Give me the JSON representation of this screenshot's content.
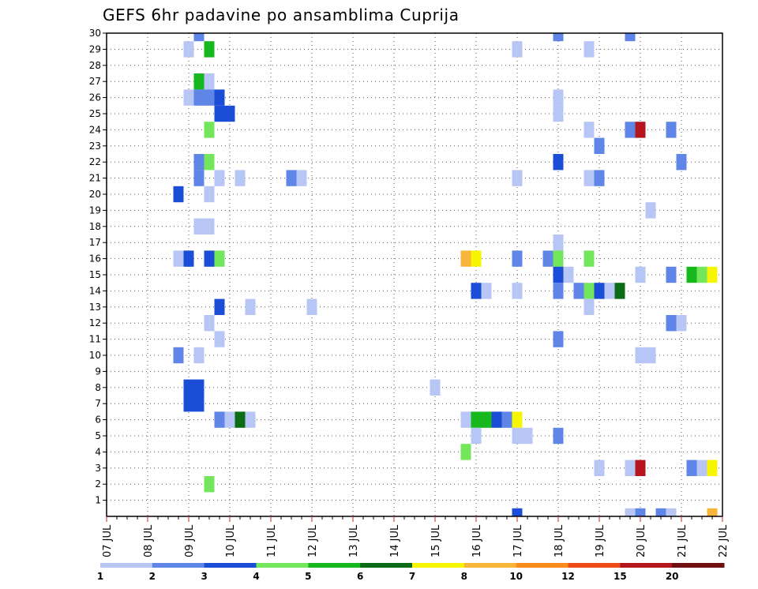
{
  "chart_data": {
    "type": "heatmap",
    "title": "GEFS 6hr padavine po ansamblima Cuprija",
    "x_tick_labels": [
      "07 JUL",
      "08 JUL",
      "09 JUL",
      "10 JUL",
      "11 JUL",
      "12 JUL",
      "13 JUL",
      "14 JUL",
      "15 JUL",
      "16 JUL",
      "17 JUL",
      "18 JUL",
      "19 JUL",
      "20 JUL",
      "21 JUL",
      "22 JUL"
    ],
    "y_tick_labels": [
      "1",
      "2",
      "3",
      "4",
      "5",
      "6",
      "7",
      "8",
      "9",
      "10",
      "11",
      "12",
      "13",
      "14",
      "15",
      "16",
      "17",
      "18",
      "19",
      "20",
      "21",
      "22",
      "23",
      "24",
      "25",
      "26",
      "27",
      "28",
      "29",
      "30"
    ],
    "y_range": [
      0,
      30
    ],
    "x_time_step_hours": 6,
    "grid": "dotted",
    "legend": {
      "position": "bottom",
      "labels": [
        "1",
        "2",
        "3",
        "4",
        "5",
        "6",
        "7",
        "8",
        "10",
        "12",
        "15",
        "20"
      ],
      "colors": [
        "#b7c6f4",
        "#5f86e6",
        "#1c4dd6",
        "#74e65c",
        "#16b81e",
        "#0b6b16",
        "#f8f500",
        "#f7b53a",
        "#f98c1c",
        "#f04a16",
        "#b5161e",
        "#6f0f10"
      ]
    },
    "colors": {
      "c1": "#b7c6f4",
      "c2": "#5f86e6",
      "c3": "#1c4dd6",
      "c4": "#74e65c",
      "c5": "#16b81e",
      "c6": "#0b6b16",
      "c7": "#f8f500",
      "c8": "#f7b53a",
      "c20": "#b5161e"
    },
    "cells": [
      [
        "09 JUL 06Z",
        30,
        2
      ],
      [
        "18 JUL 00Z",
        30,
        2
      ],
      [
        "19 JUL 18Z",
        30,
        2
      ],
      [
        "09 JUL 00Z",
        29,
        1
      ],
      [
        "09 JUL 12Z",
        29,
        5
      ],
      [
        "17 JUL 00Z",
        29,
        1
      ],
      [
        "18 JUL 18Z",
        29,
        1
      ],
      [
        "09 JUL 06Z",
        27,
        5
      ],
      [
        "09 JUL 12Z",
        27,
        1
      ],
      [
        "09 JUL 00Z",
        26,
        1
      ],
      [
        "09 JUL 06Z",
        26,
        2
      ],
      [
        "09 JUL 12Z",
        26,
        2
      ],
      [
        "09 JUL 18Z",
        26,
        3
      ],
      [
        "18 JUL 00Z",
        26,
        1
      ],
      [
        "09 JUL 18Z",
        25,
        3
      ],
      [
        "10 JUL 00Z",
        25,
        3
      ],
      [
        "18 JUL 00Z",
        25,
        1
      ],
      [
        "09 JUL 12Z",
        24,
        4
      ],
      [
        "18 JUL 18Z",
        24,
        1
      ],
      [
        "19 JUL 18Z",
        24,
        2
      ],
      [
        "20 JUL 00Z",
        24,
        20
      ],
      [
        "20 JUL 18Z",
        24,
        2
      ],
      [
        "19 JUL 00Z",
        23,
        2
      ],
      [
        "09 JUL 06Z",
        22,
        2
      ],
      [
        "09 JUL 12Z",
        22,
        4
      ],
      [
        "18 JUL 00Z",
        22,
        3
      ],
      [
        "21 JUL 00Z",
        22,
        2
      ],
      [
        "09 JUL 06Z",
        21,
        2
      ],
      [
        "09 JUL 18Z",
        21,
        1
      ],
      [
        "10 JUL 06Z",
        21,
        1
      ],
      [
        "11 JUL 12Z",
        21,
        2
      ],
      [
        "11 JUL 18Z",
        21,
        1
      ],
      [
        "17 JUL 00Z",
        21,
        1
      ],
      [
        "18 JUL 18Z",
        21,
        1
      ],
      [
        "19 JUL 00Z",
        21,
        2
      ],
      [
        "08 JUL 18Z",
        20,
        3
      ],
      [
        "09 JUL 12Z",
        20,
        1
      ],
      [
        "20 JUL 06Z",
        19,
        1
      ],
      [
        "09 JUL 06Z",
        18,
        1
      ],
      [
        "09 JUL 12Z",
        18,
        1
      ],
      [
        "18 JUL 00Z",
        17,
        1
      ],
      [
        "08 JUL 18Z",
        16,
        1
      ],
      [
        "09 JUL 00Z",
        16,
        3
      ],
      [
        "09 JUL 12Z",
        16,
        3
      ],
      [
        "09 JUL 18Z",
        16,
        4
      ],
      [
        "15 JUL 18Z",
        16,
        8
      ],
      [
        "16 JUL 00Z",
        16,
        7
      ],
      [
        "17 JUL 00Z",
        16,
        2
      ],
      [
        "17 JUL 18Z",
        16,
        2
      ],
      [
        "18 JUL 00Z",
        16,
        4
      ],
      [
        "18 JUL 18Z",
        16,
        4
      ],
      [
        "18 JUL 00Z",
        15,
        3
      ],
      [
        "18 JUL 06Z",
        15,
        1
      ],
      [
        "20 JUL 00Z",
        15,
        1
      ],
      [
        "20 JUL 18Z",
        15,
        2
      ],
      [
        "21 JUL 06Z",
        15,
        5
      ],
      [
        "21 JUL 12Z",
        15,
        4
      ],
      [
        "21 JUL 18Z",
        15,
        7
      ],
      [
        "16 JUL 00Z",
        14,
        3
      ],
      [
        "16 JUL 06Z",
        14,
        1
      ],
      [
        "17 JUL 00Z",
        14,
        1
      ],
      [
        "18 JUL 00Z",
        14,
        2
      ],
      [
        "18 JUL 12Z",
        14,
        2
      ],
      [
        "18 JUL 18Z",
        14,
        4
      ],
      [
        "19 JUL 00Z",
        14,
        3
      ],
      [
        "19 JUL 06Z",
        14,
        1
      ],
      [
        "19 JUL 12Z",
        14,
        6
      ],
      [
        "09 JUL 18Z",
        13,
        3
      ],
      [
        "10 JUL 12Z",
        13,
        1
      ],
      [
        "12 JUL 00Z",
        13,
        1
      ],
      [
        "18 JUL 18Z",
        13,
        1
      ],
      [
        "09 JUL 12Z",
        12,
        1
      ],
      [
        "20 JUL 18Z",
        12,
        2
      ],
      [
        "21 JUL 00Z",
        12,
        1
      ],
      [
        "09 JUL 18Z",
        11,
        1
      ],
      [
        "18 JUL 00Z",
        11,
        2
      ],
      [
        "08 JUL 18Z",
        10,
        2
      ],
      [
        "09 JUL 06Z",
        10,
        1
      ],
      [
        "20 JUL 00Z",
        10,
        1
      ],
      [
        "20 JUL 06Z",
        10,
        1
      ],
      [
        "09 JUL 00Z",
        8,
        3
      ],
      [
        "09 JUL 06Z",
        8,
        3
      ],
      [
        "15 JUL 00Z",
        8,
        1
      ],
      [
        "09 JUL 00Z",
        7,
        3
      ],
      [
        "09 JUL 06Z",
        7,
        3
      ],
      [
        "09 JUL 18Z",
        6,
        2
      ],
      [
        "10 JUL 00Z",
        6,
        1
      ],
      [
        "10 JUL 06Z",
        6,
        6
      ],
      [
        "10 JUL 12Z",
        6,
        1
      ],
      [
        "15 JUL 18Z",
        6,
        1
      ],
      [
        "16 JUL 00Z",
        6,
        5
      ],
      [
        "16 JUL 06Z",
        6,
        5
      ],
      [
        "16 JUL 12Z",
        6,
        3
      ],
      [
        "16 JUL 18Z",
        6,
        2
      ],
      [
        "17 JUL 00Z",
        6,
        7
      ],
      [
        "16 JUL 00Z",
        5,
        1
      ],
      [
        "17 JUL 00Z",
        5,
        1
      ],
      [
        "17 JUL 06Z",
        5,
        1
      ],
      [
        "18 JUL 00Z",
        5,
        2
      ],
      [
        "15 JUL 18Z",
        4,
        4
      ],
      [
        "19 JUL 00Z",
        3,
        1
      ],
      [
        "19 JUL 18Z",
        3,
        1
      ],
      [
        "20 JUL 00Z",
        3,
        20
      ],
      [
        "21 JUL 06Z",
        3,
        2
      ],
      [
        "21 JUL 12Z",
        3,
        1
      ],
      [
        "21 JUL 18Z",
        3,
        7
      ],
      [
        "09 JUL 12Z",
        2,
        4
      ],
      [
        "17 JUL 00Z",
        0,
        3
      ],
      [
        "19 JUL 18Z",
        0,
        1
      ],
      [
        "20 JUL 00Z",
        0,
        2
      ],
      [
        "20 JUL 12Z",
        0,
        2
      ],
      [
        "20 JUL 18Z",
        0,
        1
      ],
      [
        "21 JUL 18Z",
        0,
        8
      ]
    ]
  }
}
